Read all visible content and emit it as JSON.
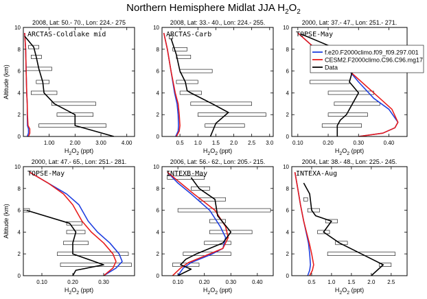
{
  "figure": {
    "title": "Northern Hemisphere Midlat JJA H",
    "title_sub": "2",
    "title_tail": "O",
    "title_sub2": "2"
  },
  "legend": {
    "entries": [
      {
        "name": "f.e20.F2000climo.f09_f09.297.001",
        "color": "#1f3fe0"
      },
      {
        "name": "CESM2.F2000climo.C96.C96.mg17",
        "color": "#e81c1c"
      },
      {
        "name": "Data",
        "color": "#000000"
      }
    ]
  },
  "chart_data": [
    {
      "type": "line",
      "header": "2008, Lat:  50.- 70., Lon: 224.- 275",
      "campaign": "ARCTAS-Coldlake mid",
      "xlabel": "H2O2 (ppt)",
      "ylabel": "Altitude (km)",
      "xlim": [
        0,
        4.3
      ],
      "ylim": [
        0,
        10
      ],
      "xticks": [
        1,
        2,
        3,
        4
      ],
      "xticklabels": [
        "1.00",
        "2.00",
        "3.00",
        "4.00"
      ],
      "yticks": [
        0,
        2,
        4,
        6,
        8,
        10
      ],
      "yticklabels": [
        "0",
        "2",
        "4",
        "6",
        "8",
        "10"
      ],
      "series": [
        {
          "name": "f.e20.F2000climo.f09_f09.297.001",
          "x": [
            0.05,
            0.09,
            0.11,
            0.13,
            0.15,
            0.15,
            0.16,
            0.2,
            0.2,
            0.15
          ],
          "y": [
            9.5,
            8,
            6,
            4,
            3,
            2,
            1,
            0.7,
            0.3,
            0
          ]
        },
        {
          "name": "CESM2.F2000climo.C96.C96.mg17",
          "x": [
            0.05,
            0.09,
            0.11,
            0.13,
            0.15,
            0.16,
            0.18,
            0.25,
            0.25,
            0.2
          ],
          "y": [
            9.5,
            8,
            6,
            4,
            3,
            2,
            1,
            0.7,
            0.3,
            0
          ]
        },
        {
          "name": "Data",
          "x": [
            0.05,
            0.4,
            0.5,
            0.6,
            0.75,
            0.8,
            1.2,
            2.0,
            2.0,
            2.0,
            3.5
          ],
          "y": [
            9.2,
            8.2,
            7.3,
            6.2,
            5,
            4,
            3,
            2,
            1.5,
            1,
            0
          ]
        }
      ],
      "error_bars": [
        {
          "y": 8.2,
          "lo": 0.2,
          "hi": 0.6
        },
        {
          "y": 7.3,
          "lo": 0.3,
          "hi": 0.7
        },
        {
          "y": 6.2,
          "lo": 0.1,
          "hi": 1.1
        },
        {
          "y": 5,
          "lo": 0.5,
          "hi": 1.0
        },
        {
          "y": 4,
          "lo": 0.3,
          "hi": 1.3
        },
        {
          "y": 3,
          "lo": 1.1,
          "hi": 2.8
        },
        {
          "y": 2,
          "lo": 1.3,
          "hi": 2.7
        },
        {
          "y": 1,
          "lo": 0.6,
          "hi": 3.2
        }
      ]
    },
    {
      "type": "line",
      "header": "2008, Lat:  33.- 40., Lon: 224.- 255.",
      "campaign": "ARCTAS-Carb",
      "xlabel": "H2O2 (ppt)",
      "ylabel": "Altitude (km)",
      "xlim": [
        0,
        3.1
      ],
      "ylim": [
        0,
        10
      ],
      "xticks": [
        0.5,
        1,
        1.5,
        2,
        2.5,
        3
      ],
      "xticklabels": [
        "0.5",
        "1.0",
        "1.5",
        "2.0",
        "2.5",
        "3.0"
      ],
      "yticks": [
        0,
        2,
        4,
        6,
        8,
        10
      ],
      "yticklabels": [
        "0",
        "2",
        "4",
        "6",
        "8",
        "10"
      ],
      "series": [
        {
          "name": "f.e20.F2000climo.f09_f09.297.001",
          "x": [
            0.05,
            0.15,
            0.25,
            0.35,
            0.42,
            0.45,
            0.46,
            0.45,
            0.38
          ],
          "y": [
            9.5,
            8,
            6,
            4,
            3,
            2,
            1,
            0.5,
            0
          ]
        },
        {
          "name": "CESM2.F2000climo.C96.C96.mg17",
          "x": [
            0.05,
            0.15,
            0.25,
            0.37,
            0.45,
            0.48,
            0.5,
            0.48,
            0.4
          ],
          "y": [
            9.5,
            8,
            6,
            4,
            3,
            2,
            1,
            0.5,
            0
          ]
        },
        {
          "name": "Data",
          "x": [
            0.25,
            0.4,
            0.5,
            0.65,
            0.7,
            0.8,
            1.4,
            1.85,
            1.5,
            1.35
          ],
          "y": [
            9,
            7.5,
            6,
            5,
            4.2,
            4,
            3,
            2.2,
            1.2,
            0
          ]
        }
      ],
      "error_bars": [
        {
          "y": 9.1,
          "lo": 0.2,
          "hi": 0.3
        },
        {
          "y": 8,
          "lo": 0.3,
          "hi": 0.7
        },
        {
          "y": 7.3,
          "lo": 0.4,
          "hi": 0.8
        },
        {
          "y": 6,
          "lo": 0.5,
          "hi": 1.4
        },
        {
          "y": 5,
          "lo": 0.4,
          "hi": 1.0
        },
        {
          "y": 4,
          "lo": 0.5,
          "hi": 1.1
        },
        {
          "y": 3,
          "lo": 0.8,
          "hi": 2.5
        },
        {
          "y": 2,
          "lo": 1.0,
          "hi": 2.9
        },
        {
          "y": 1,
          "lo": 1.2,
          "hi": 2.3
        }
      ]
    },
    {
      "type": "line",
      "header": "2000, Lat:  37.- 47., Lon: 251.- 271.",
      "campaign": "TOPSE-May",
      "xlabel": "H2O2 (ppt)",
      "ylabel": "Altitude (km)",
      "xlim": [
        0.08,
        0.46
      ],
      "ylim": [
        0,
        10
      ],
      "xticks": [
        0.1,
        0.2,
        0.3,
        0.4
      ],
      "xticklabels": [
        "0.10",
        "0.20",
        "0.30",
        "0.40"
      ],
      "yticks": [
        0,
        2,
        4,
        6,
        8,
        10
      ],
      "yticklabels": [
        "0",
        "2",
        "4",
        "6",
        "8",
        "10"
      ],
      "series": [
        {
          "name": "f.e20.F2000climo.f09_f09.297.001",
          "x": [
            0.1,
            0.16,
            0.22,
            0.27,
            0.3,
            0.35,
            0.4,
            0.43,
            0.42,
            0.38,
            0.3
          ],
          "y": [
            9.5,
            8,
            7,
            6,
            5,
            3.5,
            2.5,
            1.3,
            0.8,
            0.3,
            0
          ]
        },
        {
          "name": "CESM2.F2000climo.C96.C96.mg17",
          "x": [
            0.1,
            0.16,
            0.22,
            0.27,
            0.31,
            0.37,
            0.41,
            0.43,
            0.42,
            0.38,
            0.3
          ],
          "y": [
            9.5,
            8,
            7,
            6,
            5,
            3.5,
            2.5,
            1.3,
            0.8,
            0.3,
            0
          ]
        },
        {
          "name": "Data",
          "x": [
            0.11,
            0.23,
            0.25,
            0.28,
            0.27,
            0.3,
            0.28,
            0.26,
            0.24,
            0.23,
            0.23
          ],
          "y": [
            9.4,
            8,
            7,
            6,
            5,
            4,
            3,
            2,
            1.5,
            1,
            0
          ]
        }
      ],
      "error_bars": [
        {
          "y": 5,
          "lo": 0.14,
          "hi": 0.27
        },
        {
          "y": 4,
          "lo": 0.2,
          "hi": 0.35
        },
        {
          "y": 3,
          "lo": 0.22,
          "hi": 0.37
        },
        {
          "y": 2,
          "lo": 0.2,
          "hi": 0.33
        },
        {
          "y": 1,
          "lo": 0.18,
          "hi": 0.31
        }
      ]
    },
    {
      "type": "line",
      "header": "2000, Lat:  47.- 65., Lon: 251.- 281.",
      "campaign": "TOPSE-May",
      "xlabel": "H2O2 (ppt)",
      "ylabel": "Altitude (km)",
      "xlim": [
        0.04,
        0.4
      ],
      "ylim": [
        0,
        10
      ],
      "xticks": [
        0.1,
        0.2,
        0.3
      ],
      "xticklabels": [
        "0.10",
        "0.20",
        "0.30"
      ],
      "yticks": [
        0,
        2,
        4,
        6,
        8,
        10
      ],
      "yticklabels": [
        "0",
        "2",
        "4",
        "6",
        "8",
        "10"
      ],
      "series": [
        {
          "name": "f.e20.F2000climo.f09_f09.297.001",
          "x": [
            0.06,
            0.12,
            0.18,
            0.22,
            0.25,
            0.28,
            0.32,
            0.35,
            0.36,
            0.34,
            0.3
          ],
          "y": [
            9.5,
            8.5,
            7.5,
            6.5,
            5,
            4,
            3,
            2,
            1.3,
            0.7,
            0
          ]
        },
        {
          "name": "CESM2.F2000climo.C96.C96.mg17",
          "x": [
            0.06,
            0.12,
            0.17,
            0.2,
            0.23,
            0.26,
            0.3,
            0.33,
            0.34,
            0.33,
            0.3
          ],
          "y": [
            9.5,
            8.5,
            7.5,
            6.5,
            5,
            4,
            3,
            2,
            1.3,
            0.7,
            0
          ]
        },
        {
          "name": "Data",
          "x": [
            0.05,
            0.19,
            0.21,
            0.2,
            0.2,
            0.22,
            0.3,
            0.21,
            0.2
          ],
          "y": [
            6,
            4.8,
            4,
            3,
            2,
            1.8,
            1,
            0.5,
            0
          ]
        }
      ],
      "error_bars": [
        {
          "y": 6,
          "lo": 0.04,
          "hi": 0.06
        },
        {
          "y": 4.8,
          "lo": 0.18,
          "hi": 0.23
        },
        {
          "y": 4,
          "lo": 0.18,
          "hi": 0.24
        },
        {
          "y": 3,
          "lo": 0.17,
          "hi": 0.25
        },
        {
          "y": 2,
          "lo": 0.15,
          "hi": 0.38
        },
        {
          "y": 1,
          "lo": 0.16,
          "hi": 0.39
        }
      ]
    },
    {
      "type": "line",
      "header": "2006, Lat:  56.- 62., Lon: 205.- 215.",
      "campaign": "INTEXB-May",
      "xlabel": "H2O2 (ppt)",
      "ylabel": "Altitude (km)",
      "xlim": [
        0.04,
        0.46
      ],
      "ylim": [
        0,
        10
      ],
      "xticks": [
        0.1,
        0.2,
        0.3,
        0.4
      ],
      "xticklabels": [
        "0.10",
        "0.20",
        "0.30",
        "0.40"
      ],
      "yticks": [
        0,
        2,
        4,
        6,
        8,
        10
      ],
      "yticklabels": [
        "0",
        "2",
        "4",
        "6",
        "8",
        "10"
      ],
      "series": [
        {
          "name": "f.e20.F2000climo.f09_f09.297.001",
          "x": [
            0.06,
            0.1,
            0.15,
            0.22,
            0.26,
            0.28,
            0.27,
            0.23,
            0.15,
            0.12,
            0.1
          ],
          "y": [
            9.5,
            8.5,
            7.5,
            6,
            4.5,
            3.5,
            2.5,
            2,
            1.2,
            0.7,
            0
          ]
        },
        {
          "name": "CESM2.F2000climo.C96.C96.mg17",
          "x": [
            0.06,
            0.11,
            0.16,
            0.24,
            0.28,
            0.29,
            0.27,
            0.22,
            0.14,
            0.11,
            0.08
          ],
          "y": [
            9.5,
            8.5,
            7.5,
            6,
            4.5,
            3.5,
            2.5,
            2,
            1.2,
            0.7,
            0
          ]
        },
        {
          "name": "Data",
          "x": [
            0.15,
            0.18,
            0.24,
            0.25,
            0.3,
            0.27,
            0.17,
            0.13,
            0.11,
            0.15,
            0.1
          ],
          "y": [
            9,
            8,
            7,
            5.5,
            4,
            3,
            2,
            1.5,
            1,
            0.6,
            0
          ]
        }
      ],
      "error_bars": [
        {
          "y": 9,
          "lo": 0.06,
          "hi": 0.2
        },
        {
          "y": 8,
          "lo": 0.15,
          "hi": 0.22
        },
        {
          "y": 7,
          "lo": 0.18,
          "hi": 0.28
        },
        {
          "y": 6,
          "lo": 0.1,
          "hi": 0.45
        },
        {
          "y": 5,
          "lo": 0.22,
          "hi": 0.28
        },
        {
          "y": 4,
          "lo": 0.22,
          "hi": 0.38
        },
        {
          "y": 3,
          "lo": 0.2,
          "hi": 0.3
        },
        {
          "y": 2,
          "lo": 0.12,
          "hi": 0.3
        },
        {
          "y": 1,
          "lo": 0.08,
          "hi": 0.18
        }
      ]
    },
    {
      "type": "line",
      "header": "2004, Lat:  38.- 48., Lon: 225.- 245.",
      "campaign": "INTEXA-Aug",
      "xlabel": "H2O2 (ppt)",
      "ylabel": "Altitude (km)",
      "xlim": [
        0,
        2.9
      ],
      "ylim": [
        0,
        10
      ],
      "xticks": [
        0.5,
        1,
        1.5,
        2,
        2.5
      ],
      "xticklabels": [
        "0.5",
        "1.0",
        "1.5",
        "2.0",
        "2.5"
      ],
      "yticks": [
        0,
        2,
        4,
        6,
        8,
        10
      ],
      "yticklabels": [
        "0",
        "2",
        "4",
        "6",
        "8",
        "10"
      ],
      "series": [
        {
          "name": "f.e20.F2000climo.f09_f09.297.001",
          "x": [
            0.08,
            0.15,
            0.22,
            0.3,
            0.36,
            0.42,
            0.45,
            0.47,
            0.45,
            0.4
          ],
          "y": [
            9.5,
            8,
            6.5,
            5,
            4,
            3,
            2,
            1,
            0.5,
            0
          ]
        },
        {
          "name": "CESM2.F2000climo.C96.C96.mg17",
          "x": [
            0.08,
            0.15,
            0.22,
            0.3,
            0.37,
            0.44,
            0.5,
            0.55,
            0.52,
            0.45
          ],
          "y": [
            9.5,
            8,
            6.5,
            5,
            4,
            3,
            2,
            1,
            0.5,
            0
          ]
        },
        {
          "name": "Data",
          "x": [
            0.3,
            0.45,
            0.5,
            0.6,
            1.0,
            0.8,
            1.2,
            1.75,
            2.3,
            2.0
          ],
          "y": [
            8.5,
            7.5,
            6,
            5.5,
            5,
            4,
            3,
            2,
            1,
            0
          ]
        }
      ],
      "error_bars": [
        {
          "y": 7,
          "lo": 0.3,
          "hi": 0.4
        },
        {
          "y": 6,
          "lo": 0.4,
          "hi": 0.7
        },
        {
          "y": 5,
          "lo": 0.85,
          "hi": 1.15
        },
        {
          "y": 4,
          "lo": 0.65,
          "hi": 0.95
        },
        {
          "y": 3,
          "lo": 1.1,
          "hi": 1.4
        },
        {
          "y": 2,
          "lo": 0.9,
          "hi": 2.6
        },
        {
          "y": 1,
          "lo": 2.2,
          "hi": 2.5
        }
      ]
    }
  ]
}
